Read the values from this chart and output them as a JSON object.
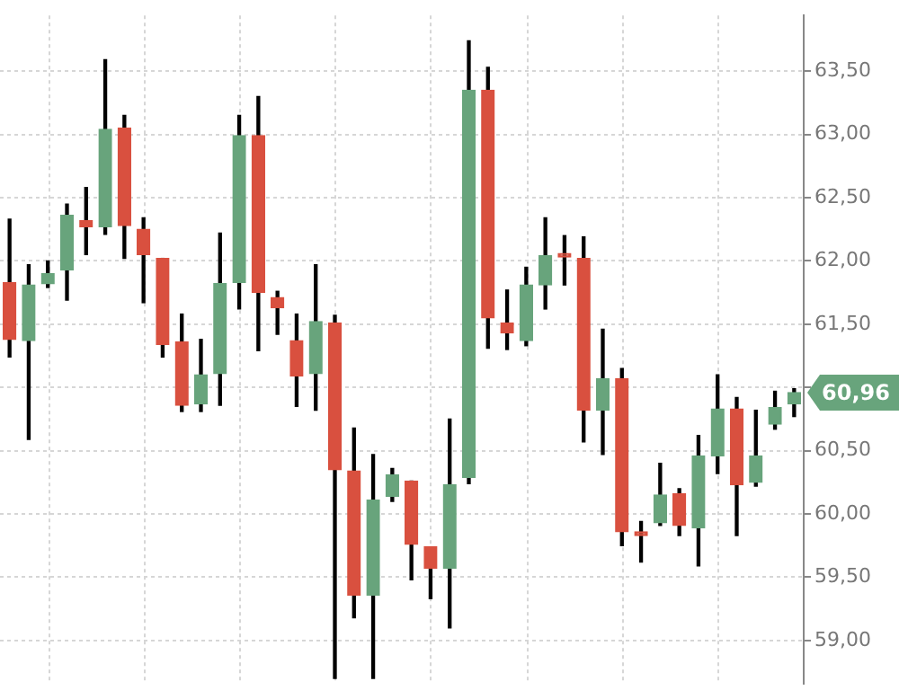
{
  "chart_data": {
    "type": "candlestick",
    "categories": [
      null,
      null,
      null,
      null,
      null,
      null,
      null,
      null,
      null,
      null,
      null,
      null,
      null,
      null,
      null,
      null,
      null,
      null,
      null,
      null,
      null,
      null,
      null,
      null,
      null,
      null,
      null,
      null,
      null,
      null,
      null,
      null,
      null,
      null,
      null,
      null,
      null,
      null,
      null,
      null,
      null,
      null
    ],
    "ohlc": [
      [
        61.83,
        62.33,
        61.24,
        61.38
      ],
      [
        61.37,
        61.97,
        60.59,
        61.81
      ],
      [
        61.82,
        62.0,
        61.79,
        61.9
      ],
      [
        61.93,
        62.45,
        61.69,
        62.36
      ],
      [
        62.32,
        62.58,
        62.05,
        62.27
      ],
      [
        62.27,
        63.59,
        62.21,
        63.04
      ],
      [
        63.05,
        63.15,
        62.02,
        62.28
      ],
      [
        62.25,
        62.34,
        61.67,
        62.05
      ],
      [
        62.02,
        62.02,
        61.24,
        61.34
      ],
      [
        61.36,
        61.58,
        60.81,
        60.86
      ],
      [
        60.87,
        61.38,
        60.81,
        61.1
      ],
      [
        61.11,
        62.22,
        60.86,
        61.82
      ],
      [
        61.83,
        63.15,
        61.62,
        62.99
      ],
      [
        62.99,
        63.3,
        61.29,
        61.75
      ],
      [
        61.71,
        61.76,
        61.42,
        61.63
      ],
      [
        61.37,
        61.58,
        60.85,
        61.09
      ],
      [
        61.11,
        61.97,
        60.82,
        61.52
      ],
      [
        61.51,
        61.57,
        58.7,
        60.35
      ],
      [
        60.34,
        60.68,
        59.18,
        59.36
      ],
      [
        59.36,
        60.47,
        58.7,
        60.11
      ],
      [
        60.14,
        60.36,
        60.1,
        60.31
      ],
      [
        60.26,
        60.26,
        59.48,
        59.76
      ],
      [
        59.74,
        59.74,
        59.33,
        59.57
      ],
      [
        59.57,
        60.75,
        59.1,
        60.23
      ],
      [
        60.29,
        63.74,
        60.24,
        63.35
      ],
      [
        63.35,
        63.53,
        61.31,
        61.55
      ],
      [
        61.51,
        61.77,
        61.3,
        61.43
      ],
      [
        61.37,
        61.95,
        61.33,
        61.81
      ],
      [
        61.81,
        62.34,
        61.62,
        62.04
      ],
      [
        62.04,
        62.2,
        61.81,
        62.03
      ],
      [
        62.02,
        62.19,
        60.57,
        60.82
      ],
      [
        60.82,
        61.46,
        60.47,
        61.07
      ],
      [
        61.07,
        61.15,
        59.75,
        59.86
      ],
      [
        59.84,
        59.94,
        59.62,
        59.83
      ],
      [
        59.93,
        60.4,
        59.91,
        60.15
      ],
      [
        60.16,
        60.2,
        59.83,
        59.91
      ],
      [
        59.89,
        60.62,
        59.59,
        60.46
      ],
      [
        60.46,
        61.1,
        60.32,
        60.83
      ],
      [
        60.83,
        60.92,
        59.83,
        60.23
      ],
      [
        60.25,
        60.82,
        60.22,
        60.46
      ],
      [
        60.71,
        60.97,
        60.67,
        60.84
      ],
      [
        60.87,
        60.99,
        60.77,
        60.96
      ]
    ],
    "colors": [
      "#d9503f",
      "#68a47c",
      "#68a47c",
      "#68a47c",
      "#d9503f",
      "#68a47c",
      "#d9503f",
      "#d9503f",
      "#d9503f",
      "#d9503f",
      "#68a47c",
      "#68a47c",
      "#68a47c",
      "#d9503f",
      "#d9503f",
      "#d9503f",
      "#68a47c",
      "#d9503f",
      "#d9503f",
      "#68a47c",
      "#68a47c",
      "#d9503f",
      "#d9503f",
      "#68a47c",
      "#68a47c",
      "#d9503f",
      "#d9503f",
      "#68a47c",
      "#68a47c",
      "#d9503f",
      "#d9503f",
      "#68a47c",
      "#d9503f",
      "#d9503f",
      "#68a47c",
      "#d9503f",
      "#68a47c",
      "#68a47c",
      "#d9503f",
      "#68a47c",
      "#68a47c",
      "#68a47c"
    ],
    "ylim": [
      58.66,
      63.94
    ],
    "yticks": [
      {
        "value": 59,
        "label": "59,00"
      },
      {
        "value": 59.5,
        "label": "59,50"
      },
      {
        "value": 60,
        "label": "60,00"
      },
      {
        "value": 60.5,
        "label": "60,50"
      },
      {
        "value": 61,
        "label": null
      },
      {
        "value": 61.5,
        "label": "61,50"
      },
      {
        "value": 62,
        "label": "62,00"
      },
      {
        "value": 62.5,
        "label": "62,50"
      },
      {
        "value": 63,
        "label": "63,00"
      },
      {
        "value": 63.5,
        "label": "63,50"
      }
    ],
    "grid": true,
    "annotations": [
      "60,96"
    ]
  }
}
